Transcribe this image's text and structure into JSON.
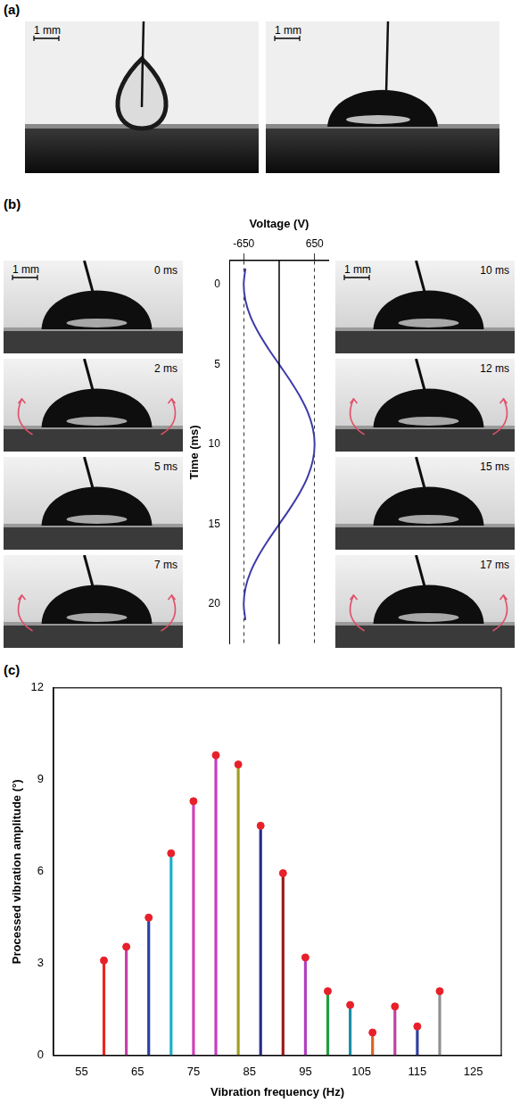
{
  "panel_labels": [
    "(a)",
    "(b)",
    "(c)"
  ],
  "panel_a": {
    "images": [
      {
        "scale_bar": "1 mm"
      },
      {
        "scale_bar": "1 mm"
      }
    ]
  },
  "panel_b": {
    "left_frames": [
      {
        "time": "0 ms",
        "scale_bar": "1 mm"
      },
      {
        "time": "2 ms"
      },
      {
        "time": "5 ms"
      },
      {
        "time": "7 ms"
      }
    ],
    "right_frames": [
      {
        "time": "10 ms",
        "scale_bar": "1 mm"
      },
      {
        "time": "12 ms"
      },
      {
        "time": "15 ms"
      },
      {
        "time": "17 ms"
      }
    ]
  },
  "chart_data": [
    {
      "type": "line",
      "x_label": "Voltage (V)",
      "y_label": "Time (ms)",
      "x": [
        -618,
        -650,
        -618,
        -526,
        -382,
        -201,
        0,
        201,
        382,
        526,
        618,
        650,
        618,
        526,
        382,
        201,
        0,
        -201,
        -382,
        -526,
        -618,
        -650,
        -618
      ],
      "y": [
        -1,
        0,
        1,
        2,
        3,
        4,
        5,
        6,
        7,
        8,
        9,
        10,
        11,
        12,
        13,
        14,
        15,
        16,
        17,
        18,
        19,
        20,
        21
      ],
      "color": "#3c3ca8",
      "xlim": [
        -900,
        900
      ],
      "xticks": [
        -650,
        650
      ],
      "ylim": [
        22.5,
        -1.5
      ],
      "yticks": [
        0,
        5,
        10,
        15,
        20
      ],
      "grid": "x"
    },
    {
      "type": "bar",
      "x_label": "Vibration frequency (Hz)",
      "y_label": "Processed vibration amplitude (°)",
      "x": [
        59,
        63,
        67,
        71,
        75,
        79,
        83,
        87,
        91,
        95,
        99,
        103,
        107,
        111,
        115,
        119
      ],
      "values": [
        3.1,
        3.55,
        4.5,
        6.6,
        8.3,
        9.8,
        9.5,
        7.5,
        5.95,
        3.2,
        2.1,
        1.65,
        0.75,
        1.6,
        0.95,
        2.1
      ],
      "colors": [
        "#e8261e",
        "#c83caa",
        "#2a3fa8",
        "#1ab0c8",
        "#d040b8",
        "#c83cc0",
        "#a0a020",
        "#2a2a90",
        "#a01818",
        "#b040c0",
        "#20a040",
        "#1890a8",
        "#e06020",
        "#c040a0",
        "#3040a0",
        "#909090"
      ],
      "marker": "circle",
      "xlim": [
        55,
        125
      ],
      "xticks": [
        55,
        65,
        75,
        85,
        95,
        105,
        115,
        125
      ],
      "ylim": [
        0,
        12
      ],
      "yticks": [
        0,
        3,
        6,
        9,
        12
      ],
      "grid": false
    }
  ]
}
